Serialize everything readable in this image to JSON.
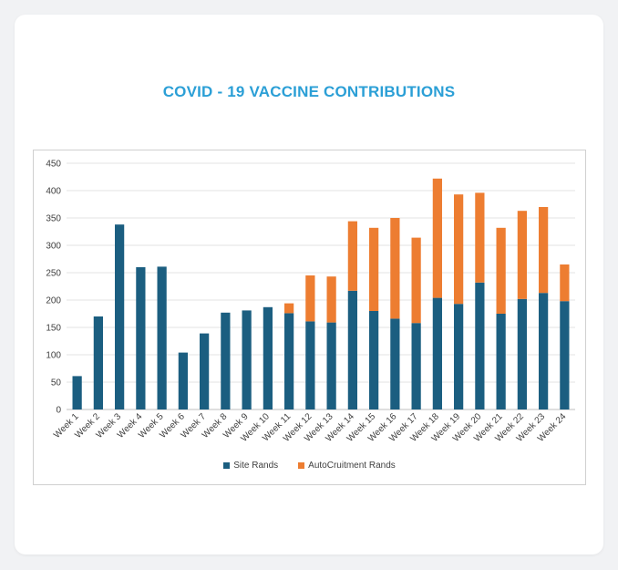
{
  "chart_data": {
    "type": "bar",
    "stacked": true,
    "title": "COVID - 19 VACCINE CONTRIBUTIONS",
    "xlabel": "",
    "ylabel": "",
    "ylim": [
      0,
      450
    ],
    "yticks": [
      "0",
      "50",
      "100",
      "150",
      "200",
      "250",
      "300",
      "350",
      "400",
      "450"
    ],
    "grid": true,
    "legend_position": "bottom",
    "categories": [
      "Week 1",
      "Week 2",
      "Week 3",
      "Week 4",
      "Week 5",
      "Week 6",
      "Week 7",
      "Week 8",
      "Week 9",
      "Week 10",
      "Week 11",
      "Week 12",
      "Week 13",
      "Week 14",
      "Week 15",
      "Week 16",
      "Week 17",
      "Week 18",
      "Week 19",
      "Week 20",
      "Week 21",
      "Week 22",
      "Week 23",
      "Week 24"
    ],
    "series": [
      {
        "name": "Site Rands",
        "color": "#1b5e80",
        "values": [
          61,
          170,
          338,
          260,
          261,
          104,
          139,
          177,
          181,
          187,
          176,
          161,
          159,
          217,
          180,
          166,
          158,
          204,
          193,
          232,
          175,
          202,
          213,
          198
        ]
      },
      {
        "name": "AutoCruitment Rands",
        "color": "#ed7d31",
        "values": [
          0,
          0,
          0,
          0,
          0,
          0,
          0,
          0,
          0,
          0,
          18,
          84,
          84,
          127,
          152,
          184,
          156,
          218,
          200,
          164,
          157,
          161,
          157,
          67
        ]
      }
    ]
  }
}
